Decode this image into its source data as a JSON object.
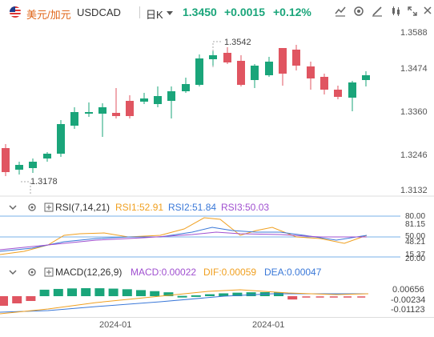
{
  "header": {
    "pair_name": "美元/加元",
    "pair_code": "USDCAD",
    "timeframe": "日K",
    "price": "1.3450",
    "change": "+0.0015",
    "change_pct": "+0.12%",
    "colors": {
      "up": "#1aa57a",
      "down": "#e05561",
      "accent": "#e0671b"
    },
    "icons": [
      "line-chart-icon",
      "settings-icon",
      "draw-icon",
      "candle-type-icon",
      "expand-icon",
      "close-icon"
    ]
  },
  "main_chart": {
    "price_axis": [
      "1.3588",
      "1.3474",
      "1.3360",
      "1.3246",
      "1.3132"
    ],
    "annotation_high": "1.3542",
    "annotation_low": "1.3178"
  },
  "rsi": {
    "label": "RSI(7,14,21)",
    "rsi1": "RSI1:52.91",
    "rsi2": "RSI2:51.84",
    "rsi3": "RSI3:50.03",
    "axis": [
      "80.00",
      "81.15",
      "50.00",
      "48.21",
      "20.00",
      "15.37"
    ]
  },
  "macd": {
    "label": "MACD(12,26,9)",
    "macd": "MACD:0.00022",
    "dif": "DIF:0.00059",
    "dea": "DEA:0.00047",
    "axis": [
      "0.00656",
      "-0.00234",
      "-0.01123"
    ]
  },
  "dates": [
    "2024-01",
    "2024-01"
  ]
}
